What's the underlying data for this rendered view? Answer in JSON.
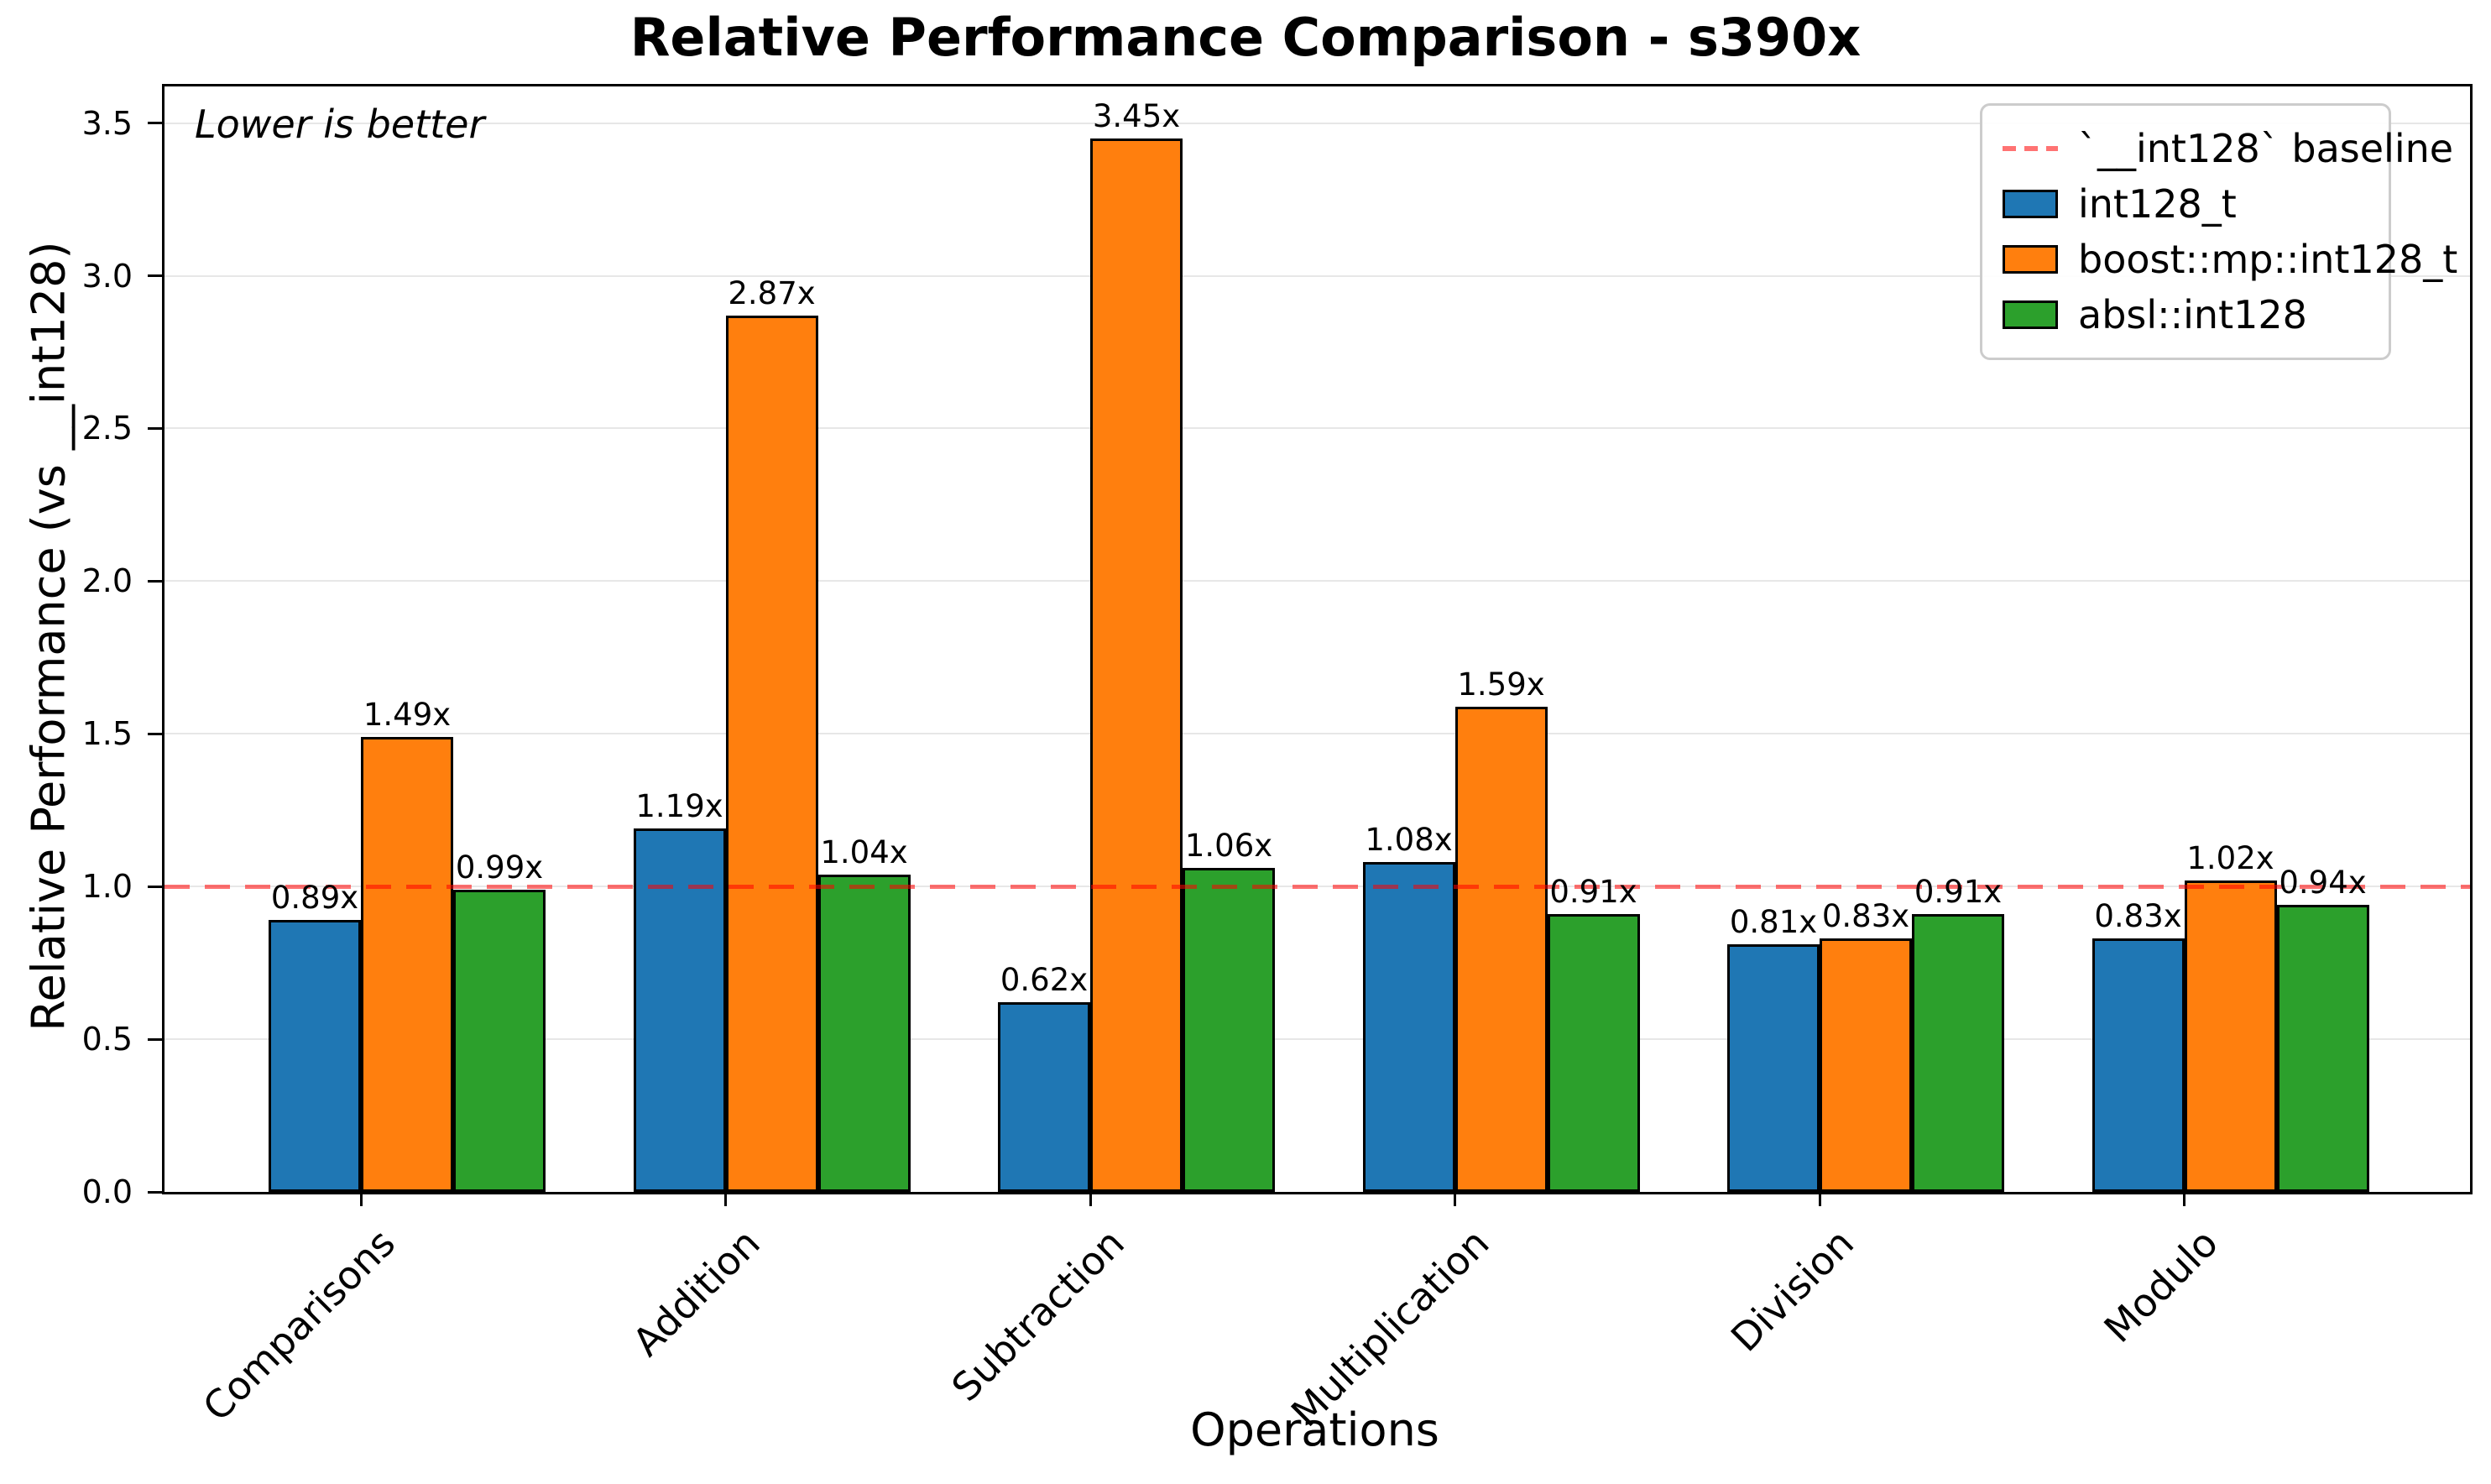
{
  "title": "Relative Performance Comparison - s390x",
  "annotation": "Lower is better",
  "axes": {
    "xlabel": "Operations",
    "ylabel": "Relative Performance (vs __int128)"
  },
  "chart_data": {
    "type": "bar",
    "title": "Relative Performance Comparison - s390x",
    "xlabel": "Operations",
    "ylabel": "Relative Performance (vs __int128)",
    "categories": [
      "Comparisons",
      "Addition",
      "Subtraction",
      "Multiplication",
      "Division",
      "Modulo"
    ],
    "series": [
      {
        "name": "int128_t",
        "color": "#1f77b4",
        "values": [
          0.89,
          1.19,
          0.62,
          1.08,
          0.81,
          0.83
        ]
      },
      {
        "name": "boost::mp::int128_t",
        "color": "#ff7f0e",
        "values": [
          1.49,
          2.87,
          3.45,
          1.59,
          0.83,
          1.02
        ]
      },
      {
        "name": "absl::int128",
        "color": "#2ca02c",
        "values": [
          0.99,
          1.04,
          1.06,
          0.91,
          0.91,
          0.94
        ]
      }
    ],
    "value_label_suffix": "x",
    "baseline": {
      "value": 1.0,
      "label": "`__int128` baseline",
      "color": "rgba(255,0,0,0.55)"
    },
    "yticks": [
      "0.0",
      "0.5",
      "1.0",
      "1.5",
      "2.0",
      "2.5",
      "3.0",
      "3.5"
    ],
    "ylim": [
      0,
      3.62
    ],
    "grid": true,
    "legend_position": "upper right",
    "annotation": "Lower is better"
  }
}
